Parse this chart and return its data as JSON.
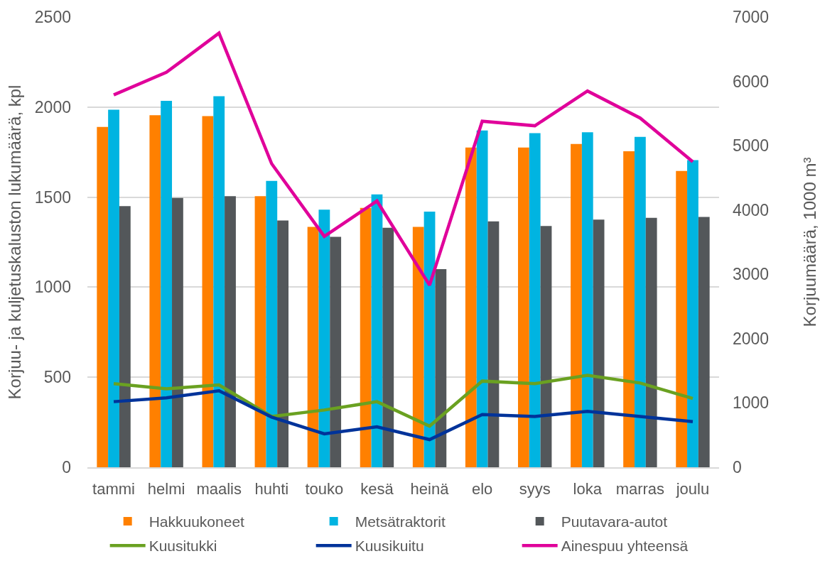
{
  "chart_data": {
    "type": "bar",
    "categories": [
      "tammi",
      "helmi",
      "maalis",
      "huhti",
      "touko",
      "kesä",
      "heinä",
      "elo",
      "syys",
      "loka",
      "marras",
      "joulu"
    ],
    "series": [
      {
        "name": "Hakkuukoneet",
        "color": "#ff8000",
        "values": [
          1890,
          1955,
          1950,
          1505,
          1335,
          1440,
          1335,
          1775,
          1775,
          1795,
          1755,
          1645
        ]
      },
      {
        "name": "Metsätraktorit",
        "color": "#00b4e1",
        "values": [
          1985,
          2035,
          2060,
          1590,
          1430,
          1515,
          1420,
          1870,
          1855,
          1860,
          1835,
          1705
        ]
      },
      {
        "name": "Puutavara-autot",
        "color": "#53575a",
        "values": [
          1450,
          1495,
          1505,
          1370,
          1280,
          1330,
          1100,
          1365,
          1340,
          1375,
          1385,
          1390
        ]
      },
      {
        "name": "Kuusitukki",
        "color": "#6aa121",
        "type": "line",
        "axis": "y2",
        "values": [
          1300,
          1220,
          1280,
          790,
          890,
          1020,
          640,
          1340,
          1300,
          1430,
          1310,
          1070
        ]
      },
      {
        "name": "Kuusikuitu",
        "color": "#00339a",
        "type": "line",
        "axis": "y2",
        "values": [
          1020,
          1080,
          1190,
          780,
          520,
          630,
          430,
          820,
          790,
          870,
          790,
          710
        ]
      },
      {
        "name": "Ainespuu yhteensä",
        "color": "#e0009a",
        "type": "line",
        "axis": "y2",
        "values": [
          5790,
          6140,
          6750,
          4720,
          3590,
          4140,
          2830,
          5380,
          5310,
          5850,
          5430,
          4750
        ]
      }
    ],
    "ylabel": "Korjuu- ja kuljetuskaluston lukumäärä, kpl",
    "y2label": "Korjuumäärä, 1000 m³",
    "ylim": [
      0,
      2500
    ],
    "yticks": [
      0,
      500,
      1000,
      1500,
      2000,
      2500
    ],
    "y2lim": [
      0,
      7000
    ],
    "y2ticks": [
      0,
      1000,
      2000,
      3000,
      4000,
      5000,
      6000,
      7000
    ],
    "grid": "y",
    "legend": "bottom"
  }
}
